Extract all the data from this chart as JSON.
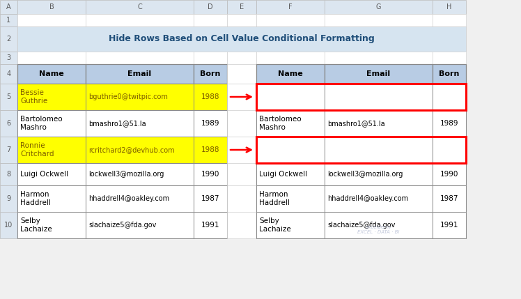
{
  "title": "Hide Rows Based on Cell Value Conditional Formatting",
  "title_bg": "#d6e4f0",
  "title_color": "#1f4e79",
  "col_header_bg": "#b8cce4",
  "yellow_bg": "#ffff00",
  "red_border_color": "#ff0000",
  "arrow_color": "#ff0000",
  "fig_bg": "#f0f0f0",
  "col_label_bg": "#dce6f0",
  "col_label_text": "#595959",
  "row_label_bg": "#dce6f0",
  "row_label_text": "#595959",
  "left_table": {
    "headers": [
      "Name",
      "Email",
      "Born"
    ],
    "rows": [
      {
        "name": "Bessie\nGuthrie",
        "email": "bguthrie0@twitpic.com",
        "born": "1988",
        "highlight": true
      },
      {
        "name": "Bartolomeo\nMashro",
        "email": "bmashro1@51.la",
        "born": "1989",
        "highlight": false
      },
      {
        "name": "Ronnie\nCritchard",
        "email": "rcritchard2@devhub.com",
        "born": "1988",
        "highlight": true
      },
      {
        "name": "Luigi Ockwell",
        "email": "lockwell3@mozilla.org",
        "born": "1990",
        "highlight": false
      },
      {
        "name": "Harmon\nHaddrell",
        "email": "hhaddrell4@oakley.com",
        "born": "1987",
        "highlight": false
      },
      {
        "name": "Selby\nLachaize",
        "email": "slachaize5@fda.gov",
        "born": "1991",
        "highlight": false
      }
    ]
  },
  "right_table": {
    "headers": [
      "Name",
      "Email",
      "Born"
    ],
    "rows": [
      {
        "name": "",
        "email": "",
        "born": "",
        "red_box": true
      },
      {
        "name": "Bartolomeo\nMashro",
        "email": "bmashro1@51.la",
        "born": "1989",
        "red_box": false
      },
      {
        "name": "",
        "email": "",
        "born": "",
        "red_box": true
      },
      {
        "name": "Luigi Ockwell",
        "email": "lockwell3@mozilla.org",
        "born": "1990",
        "red_box": false
      },
      {
        "name": "Harmon\nHaddrell",
        "email": "hhaddrell4@oakley.com",
        "born": "1987",
        "red_box": false
      },
      {
        "name": "Selby\nLachaize",
        "email": "slachaize5@fda.gov",
        "born": "1991",
        "red_box": false
      }
    ]
  },
  "col_labels": [
    "A",
    "B",
    "C",
    "D",
    "E",
    "F",
    "G",
    "H"
  ],
  "row_labels": [
    "1",
    "2",
    "3",
    "4",
    "5",
    "6",
    "7",
    "8",
    "9",
    "10"
  ],
  "watermark": "exceldemy\nEXCEL · DATA · BI"
}
